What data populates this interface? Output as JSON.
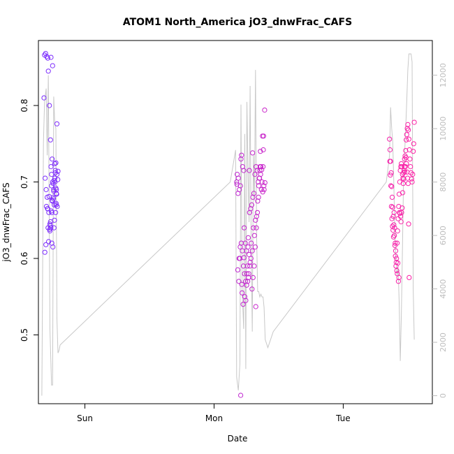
{
  "chart_data": {
    "type": "scatter",
    "title": "ATOM1 North_America jO3_dnwFrac_CAFS",
    "xlabel": "Date",
    "ylabel": "jO3_dnwFrac_CAFS",
    "x_axis": {
      "type": "time",
      "unit": "hours",
      "range": [
        -8.64,
        64.56
      ],
      "ticks": [
        {
          "value": 0,
          "label": "Sun"
        },
        {
          "value": 24,
          "label": "Mon"
        },
        {
          "value": 48,
          "label": "Tue"
        }
      ]
    },
    "y_left": {
      "range": [
        0.41,
        0.885
      ],
      "ticks": [
        0.5,
        0.6,
        0.7,
        0.8
      ]
    },
    "y_right": {
      "range": [
        -300,
        13300
      ],
      "ticks": [
        0,
        2000,
        4000,
        6000,
        8000,
        10000,
        12000
      ],
      "color": "#bdbdbd",
      "meaning": "altitude trace (unlabeled)"
    },
    "grid": false,
    "colors": {
      "points_start": "#7a2cff",
      "points_end": "#ff1fa4",
      "altitude_line": "#c8c8c8"
    },
    "series": [
      {
        "marker": "open-circle",
        "x": [
          -7.5,
          -7.3,
          -7.1,
          -6.9,
          -6.8,
          -6.6,
          -6.4,
          -6.3,
          -6.2,
          -6.1,
          -6.0,
          -5.9,
          -5.8,
          -5.7,
          -5.6,
          -5.5,
          -5.4,
          -5.3,
          -5.2,
          -7.6,
          -7.4,
          -7.2,
          -7.0,
          -6.7,
          -6.5,
          -6.35,
          -6.15,
          -5.95,
          -5.75,
          -5.65,
          -5.45,
          -5.35,
          -5.25,
          -7.45,
          -7.25,
          -6.85,
          -6.45,
          -6.25,
          -6.05,
          -5.85,
          -5.55,
          -5.15,
          -6.75,
          -6.55,
          -7.15,
          -6.95,
          -5.05,
          -5.5,
          -6.65,
          -6.2,
          -5.9,
          -5.7,
          -5.3,
          -6.0,
          -6.3,
          -5.6,
          -5.8,
          -6.1,
          -6.4,
          -5.4,
          -5.2,
          -5.0,
          -6.9,
          -6.5,
          -6.15,
          -5.35
        ],
        "y": [
          0.866,
          0.868,
          0.864,
          0.862,
          0.845,
          0.8,
          0.755,
          0.72,
          0.71,
          0.73,
          0.7,
          0.68,
          0.69,
          0.67,
          0.705,
          0.715,
          0.725,
          0.69,
          0.776,
          0.81,
          0.705,
          0.69,
          0.68,
          0.66,
          0.645,
          0.64,
          0.62,
          0.615,
          0.64,
          0.65,
          0.66,
          0.672,
          0.684,
          0.608,
          0.618,
          0.64,
          0.643,
          0.662,
          0.675,
          0.678,
          0.7,
          0.668,
          0.622,
          0.638,
          0.668,
          0.665,
          0.703,
          0.712,
          0.681,
          0.695,
          0.698,
          0.702,
          0.685,
          0.852,
          0.863,
          0.724,
          0.688,
          0.676,
          0.648,
          0.692,
          0.71,
          0.714,
          0.665,
          0.636,
          0.66,
          0.67
        ]
      },
      {
        "marker": "open-circle",
        "x": [
          28.2,
          28.3,
          28.5,
          28.7,
          28.9,
          29.0,
          29.1,
          29.3,
          29.5,
          29.6,
          29.8,
          30.0,
          30.2,
          30.4,
          30.6,
          30.8,
          31.0,
          31.2,
          31.4,
          31.6,
          31.8,
          32.0,
          32.2,
          32.4,
          32.6,
          32.8,
          33.0,
          33.2,
          33.4,
          28.4,
          28.6,
          28.8,
          29.2,
          29.4,
          29.7,
          29.9,
          30.1,
          30.3,
          30.5,
          30.7,
          30.9,
          31.1,
          31.3,
          31.5,
          31.7,
          31.9,
          32.1,
          32.3,
          32.5,
          32.7,
          32.9,
          33.1,
          33.3,
          28.25,
          28.45,
          28.65,
          28.85,
          29.05,
          29.25,
          29.45,
          29.65,
          29.85,
          30.05,
          30.25,
          30.45,
          30.65,
          30.85,
          31.05,
          31.25,
          31.45,
          31.65,
          31.85,
          32.05,
          32.25,
          32.45,
          32.65,
          32.85,
          33.05,
          33.25,
          33.45,
          30.55,
          31.15,
          29.55,
          30.35,
          31.75,
          32.55,
          33.15,
          29.15,
          28.95
        ],
        "y": [
          0.7,
          0.71,
          0.705,
          0.69,
          0.695,
          0.73,
          0.735,
          0.72,
          0.715,
          0.64,
          0.62,
          0.61,
          0.59,
          0.575,
          0.66,
          0.665,
          0.67,
          0.68,
          0.685,
          0.71,
          0.72,
          0.715,
          0.7,
          0.705,
          0.74,
          0.69,
          0.76,
          0.76,
          0.794,
          0.585,
          0.57,
          0.6,
          0.555,
          0.54,
          0.55,
          0.545,
          0.58,
          0.615,
          0.605,
          0.595,
          0.62,
          0.61,
          0.64,
          0.63,
          0.65,
          0.655,
          0.675,
          0.695,
          0.715,
          0.72,
          0.7,
          0.72,
          0.69,
          0.697,
          0.685,
          0.6,
          0.615,
          0.62,
          0.61,
          0.59,
          0.58,
          0.57,
          0.565,
          0.57,
          0.58,
          0.59,
          0.6,
          0.56,
          0.575,
          0.59,
          0.615,
          0.64,
          0.66,
          0.68,
          0.705,
          0.71,
          0.716,
          0.687,
          0.695,
          0.699,
          0.715,
          0.738,
          0.601,
          0.627,
          0.537,
          0.72,
          0.742,
          0.566,
          0.421
        ]
      },
      {
        "marker": "open-circle",
        "x": [
          56.6,
          56.7,
          56.8,
          56.9,
          57.0,
          57.1,
          57.2,
          57.3,
          57.4,
          57.5,
          57.6,
          57.7,
          57.8,
          57.9,
          58.0,
          58.1,
          58.2,
          58.3,
          58.4,
          58.5,
          58.6,
          58.7,
          58.8,
          58.9,
          59.0,
          59.1,
          59.2,
          59.3,
          59.4,
          59.5,
          59.6,
          59.7,
          59.8,
          59.9,
          60.0,
          60.1,
          60.2,
          60.3,
          60.4,
          60.5,
          60.6,
          60.7,
          60.8,
          60.9,
          61.0,
          61.1,
          61.2,
          56.65,
          56.75,
          56.85,
          56.95,
          57.05,
          57.15,
          57.25,
          57.35,
          57.45,
          57.55,
          57.65,
          57.75,
          57.85,
          57.95,
          58.05,
          58.15,
          58.25,
          58.35,
          58.45,
          58.55,
          58.65,
          58.75,
          58.85,
          58.95,
          59.05,
          59.15,
          59.25,
          59.35,
          59.45,
          59.55,
          59.65,
          59.75,
          59.85,
          59.95,
          60.05,
          60.15,
          60.25
        ],
        "y": [
          0.756,
          0.742,
          0.727,
          0.712,
          0.694,
          0.68,
          0.667,
          0.655,
          0.644,
          0.63,
          0.617,
          0.603,
          0.59,
          0.6,
          0.62,
          0.636,
          0.652,
          0.668,
          0.684,
          0.7,
          0.715,
          0.72,
          0.724,
          0.72,
          0.71,
          0.705,
          0.712,
          0.715,
          0.73,
          0.734,
          0.741,
          0.755,
          0.762,
          0.77,
          0.775,
          0.768,
          0.756,
          0.742,
          0.73,
          0.72,
          0.712,
          0.704,
          0.7,
          0.71,
          0.74,
          0.75,
          0.778,
          0.727,
          0.709,
          0.695,
          0.668,
          0.652,
          0.642,
          0.637,
          0.628,
          0.66,
          0.64,
          0.62,
          0.61,
          0.595,
          0.584,
          0.58,
          0.594,
          0.57,
          0.575,
          0.66,
          0.659,
          0.655,
          0.648,
          0.66,
          0.666,
          0.686,
          0.698,
          0.704,
          0.72,
          0.713,
          0.72,
          0.732,
          0.724,
          0.713,
          0.705,
          0.698,
          0.645,
          0.575
        ]
      }
    ],
    "altitude_line": {
      "x": [
        -8.0,
        -7.7,
        -7.5,
        -7.2,
        -7.0,
        -6.8,
        -6.5,
        -6.2,
        -6.0,
        -5.8,
        -5.6,
        -5.4,
        -5.2,
        -5.0,
        -4.8,
        -4.6,
        27.0,
        27.5,
        28.0,
        28.2,
        28.5,
        28.8,
        29.0,
        29.2,
        29.5,
        29.7,
        29.9,
        30.1,
        30.3,
        30.5,
        30.7,
        30.9,
        31.1,
        31.3,
        31.5,
        31.7,
        31.9,
        32.1,
        32.3,
        32.5,
        32.7,
        32.9,
        33.1,
        33.3,
        33.5,
        34.0,
        34.5,
        35.0,
        56.0,
        56.3,
        56.6,
        56.8,
        57.0,
        57.2,
        57.4,
        57.6,
        57.8,
        58.0,
        58.2,
        58.4,
        58.6,
        58.8,
        59.0,
        59.2,
        59.4,
        59.6,
        59.8,
        60.0,
        60.2,
        60.4,
        60.6,
        60.8,
        61.0,
        61.2
      ],
      "y": [
        0,
        9500,
        11000,
        11500,
        9000,
        12000,
        2500,
        400,
        400,
        11200,
        10200,
        10000,
        2900,
        1600,
        1700,
        1900,
        8000,
        8600,
        9200,
        700,
        200,
        1200,
        10900,
        4000,
        2500,
        9800,
        1000,
        11000,
        8500,
        6500,
        11600,
        5300,
        2400,
        9000,
        7300,
        12200,
        6000,
        3900,
        3900,
        3700,
        3800,
        3700,
        3700,
        3300,
        2100,
        1800,
        2100,
        2400,
        8000,
        8500,
        9000,
        10800,
        10000,
        9500,
        8000,
        6000,
        5000,
        4500,
        4800,
        3500,
        1300,
        3000,
        5500,
        8000,
        9000,
        10000,
        11000,
        12200,
        12800,
        12800,
        12800,
        12500,
        4000,
        2100
      ]
    }
  }
}
